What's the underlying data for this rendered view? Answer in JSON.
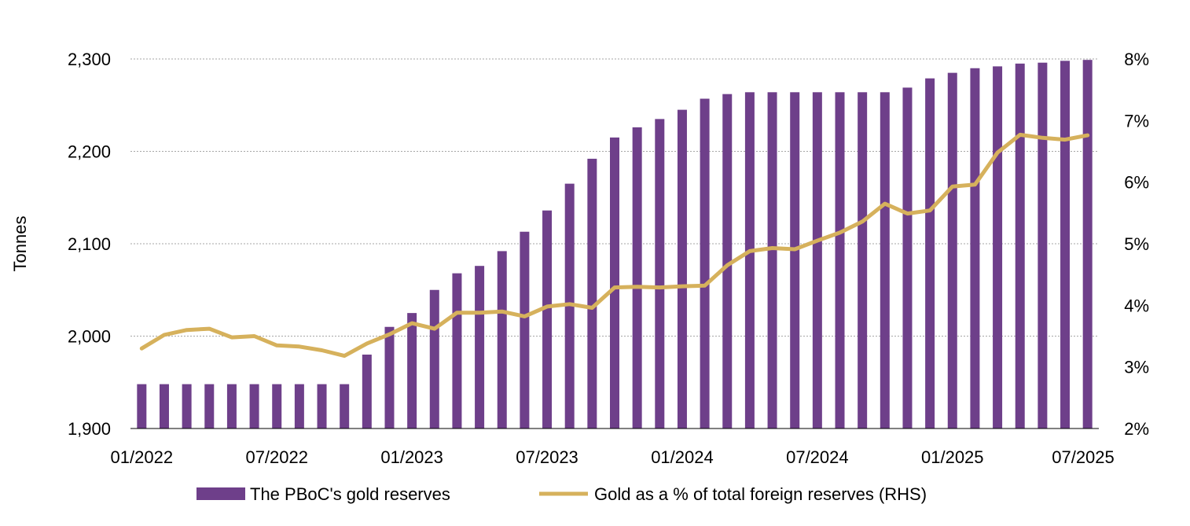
{
  "chart_data": {
    "type": "bar",
    "title": "",
    "xlabel": "",
    "ylabel": "Tonnes",
    "ylim": [
      1900,
      2300
    ],
    "y2lim": [
      2,
      8
    ],
    "y_ticks": [
      "1,900",
      "2,000",
      "2,100",
      "2,200",
      "2,300"
    ],
    "y2_ticks": [
      "2%",
      "3%",
      "4%",
      "5%",
      "6%",
      "7%",
      "8%"
    ],
    "x_ticks": [
      "01/2022",
      "07/2022",
      "01/2023",
      "07/2023",
      "01/2024",
      "07/2024",
      "01/2025",
      "07/2025"
    ],
    "grid": "horizontal",
    "legend_position": "bottom",
    "categories": [
      "01/2022",
      "02/2022",
      "03/2022",
      "04/2022",
      "05/2022",
      "06/2022",
      "07/2022",
      "08/2022",
      "09/2022",
      "10/2022",
      "11/2022",
      "12/2022",
      "01/2023",
      "02/2023",
      "03/2023",
      "04/2023",
      "05/2023",
      "06/2023",
      "07/2023",
      "08/2023",
      "09/2023",
      "10/2023",
      "11/2023",
      "12/2023",
      "01/2024",
      "02/2024",
      "03/2024",
      "04/2024",
      "05/2024",
      "06/2024",
      "07/2024",
      "08/2024",
      "09/2024",
      "10/2024",
      "11/2024",
      "12/2024",
      "01/2025",
      "02/2025",
      "03/2025",
      "04/2025",
      "05/2025",
      "06/2025",
      "07/2025"
    ],
    "series": [
      {
        "name": "The PBoC's gold reserves",
        "type": "bar",
        "axis": "left",
        "color": "#6e3f8a",
        "values": [
          1948,
          1948,
          1948,
          1948,
          1948,
          1948,
          1948,
          1948,
          1948,
          1948,
          1980,
          2010,
          2025,
          2050,
          2068,
          2076,
          2092,
          2113,
          2136,
          2165,
          2192,
          2215,
          2226,
          2235,
          2245,
          2257,
          2262,
          2264,
          2264,
          2264,
          2264,
          2264,
          2264,
          2264,
          2269,
          2279,
          2285,
          2290,
          2292,
          2295,
          2296,
          2298,
          2299
        ]
      },
      {
        "name": "Gold as a % of total foreign reserves (RHS)",
        "type": "line",
        "axis": "right",
        "color": "#d6b15c",
        "values": [
          3.3,
          3.52,
          3.6,
          3.62,
          3.48,
          3.5,
          3.35,
          3.33,
          3.27,
          3.18,
          3.38,
          3.53,
          3.71,
          3.62,
          3.88,
          3.88,
          3.9,
          3.82,
          3.98,
          4.02,
          3.96,
          4.29,
          4.3,
          4.29,
          4.31,
          4.32,
          4.65,
          4.88,
          4.93,
          4.91,
          5.05,
          5.18,
          5.36,
          5.65,
          5.49,
          5.54,
          5.93,
          5.96,
          6.48,
          6.77,
          6.72,
          6.69,
          6.76
        ]
      }
    ]
  }
}
